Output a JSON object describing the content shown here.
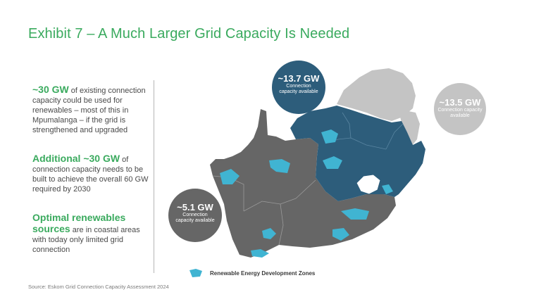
{
  "title": "Exhibit 7 – A Much Larger Grid Capacity Is Needed",
  "points": [
    {
      "highlight": "~30 GW",
      "text": " of existing connection capacity could be used for renewables – most of this in Mpumalanga – if the grid is strengthened and upgraded"
    },
    {
      "highlight": "Additional ~30 GW",
      "text": " of connection capacity needs to be built to achieve the overall 60 GW required by 2030"
    },
    {
      "highlight": "Optimal renewables sources",
      "text": " are in coastal areas with today only limited grid connection"
    }
  ],
  "bubbles": [
    {
      "value": "~13.7 GW",
      "label": "Connection capacity available"
    },
    {
      "value": "~13.5 GW",
      "label": "Connection capacity available"
    },
    {
      "value": "~5.1 GW",
      "label": "Connection capacity available"
    }
  ],
  "legend": {
    "label": "Renewable Energy Development Zones"
  },
  "source": "Source: Eskom Grid Connection Capacity Assessment 2024",
  "colors": {
    "title": "#3aaa5e",
    "provinces_dark": "#666666",
    "provinces_blue": "#2d5d7b",
    "neighbours": "#c4c4c4",
    "redz": "#40b4d2"
  }
}
